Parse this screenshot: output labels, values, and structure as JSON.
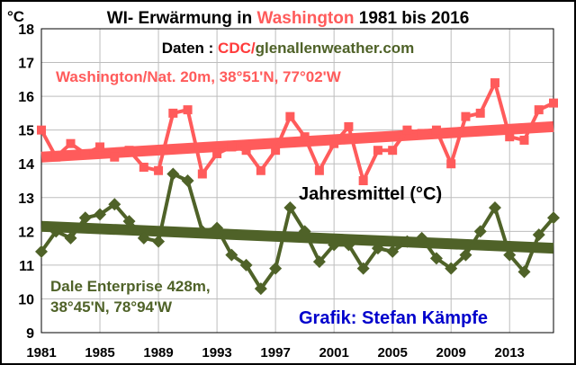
{
  "chart_data": {
    "type": "line",
    "title_parts": [
      "WI- Erwärmung in ",
      "Washington",
      " 1981 bis 2016"
    ],
    "source_parts": [
      "Daten : ",
      "CDC/",
      "glenallenweather.com"
    ],
    "y_unit": "°C",
    "center_label": "Jahresmittel (°C)",
    "credit": "Grafik: Stefan Kämpfe",
    "ylim": [
      9,
      18
    ],
    "xlim": [
      1981,
      2016
    ],
    "x_ticks": [
      1981,
      1985,
      1989,
      1993,
      1997,
      2001,
      2005,
      2009,
      2013
    ],
    "y_ticks": [
      9,
      10,
      11,
      12,
      13,
      14,
      15,
      16,
      17,
      18
    ],
    "grid": true,
    "x": [
      1981,
      1982,
      1983,
      1984,
      1985,
      1986,
      1987,
      1988,
      1989,
      1990,
      1991,
      1992,
      1993,
      1994,
      1995,
      1996,
      1997,
      1998,
      1999,
      2000,
      2001,
      2002,
      2003,
      2004,
      2005,
      2006,
      2007,
      2008,
      2009,
      2010,
      2011,
      2012,
      2013,
      2014,
      2015,
      2016
    ],
    "series": [
      {
        "label_lines": [
          "Washington/Nat. 20m, 38°51'N, 77°02'W"
        ],
        "color": "#ff5b5b",
        "values": [
          15.0,
          14.2,
          14.6,
          14.3,
          14.5,
          14.2,
          14.4,
          13.9,
          13.8,
          15.5,
          15.6,
          13.7,
          14.3,
          14.5,
          14.4,
          13.8,
          14.4,
          15.4,
          14.8,
          13.8,
          14.6,
          15.1,
          13.5,
          14.4,
          14.4,
          15.0,
          14.9,
          15.0,
          14.0,
          15.4,
          15.5,
          16.4,
          14.8,
          14.7,
          15.6,
          15.8
        ],
        "trend": [
          14.2,
          15.1
        ]
      },
      {
        "label_lines": [
          "Dale Enterprise 428m,",
          "38°45'N, 78°94'W"
        ],
        "color": "#4f6228",
        "values": [
          11.4,
          12.0,
          11.8,
          12.4,
          12.5,
          12.8,
          12.3,
          11.8,
          11.7,
          13.7,
          13.5,
          12.0,
          12.1,
          11.3,
          11.0,
          10.3,
          10.9,
          12.7,
          12.0,
          11.1,
          11.6,
          11.6,
          10.9,
          11.5,
          11.4,
          11.7,
          11.8,
          11.2,
          10.9,
          11.3,
          12.0,
          12.7,
          11.3,
          10.8,
          11.9,
          12.4
        ],
        "trend": [
          12.15,
          11.5
        ]
      }
    ]
  }
}
